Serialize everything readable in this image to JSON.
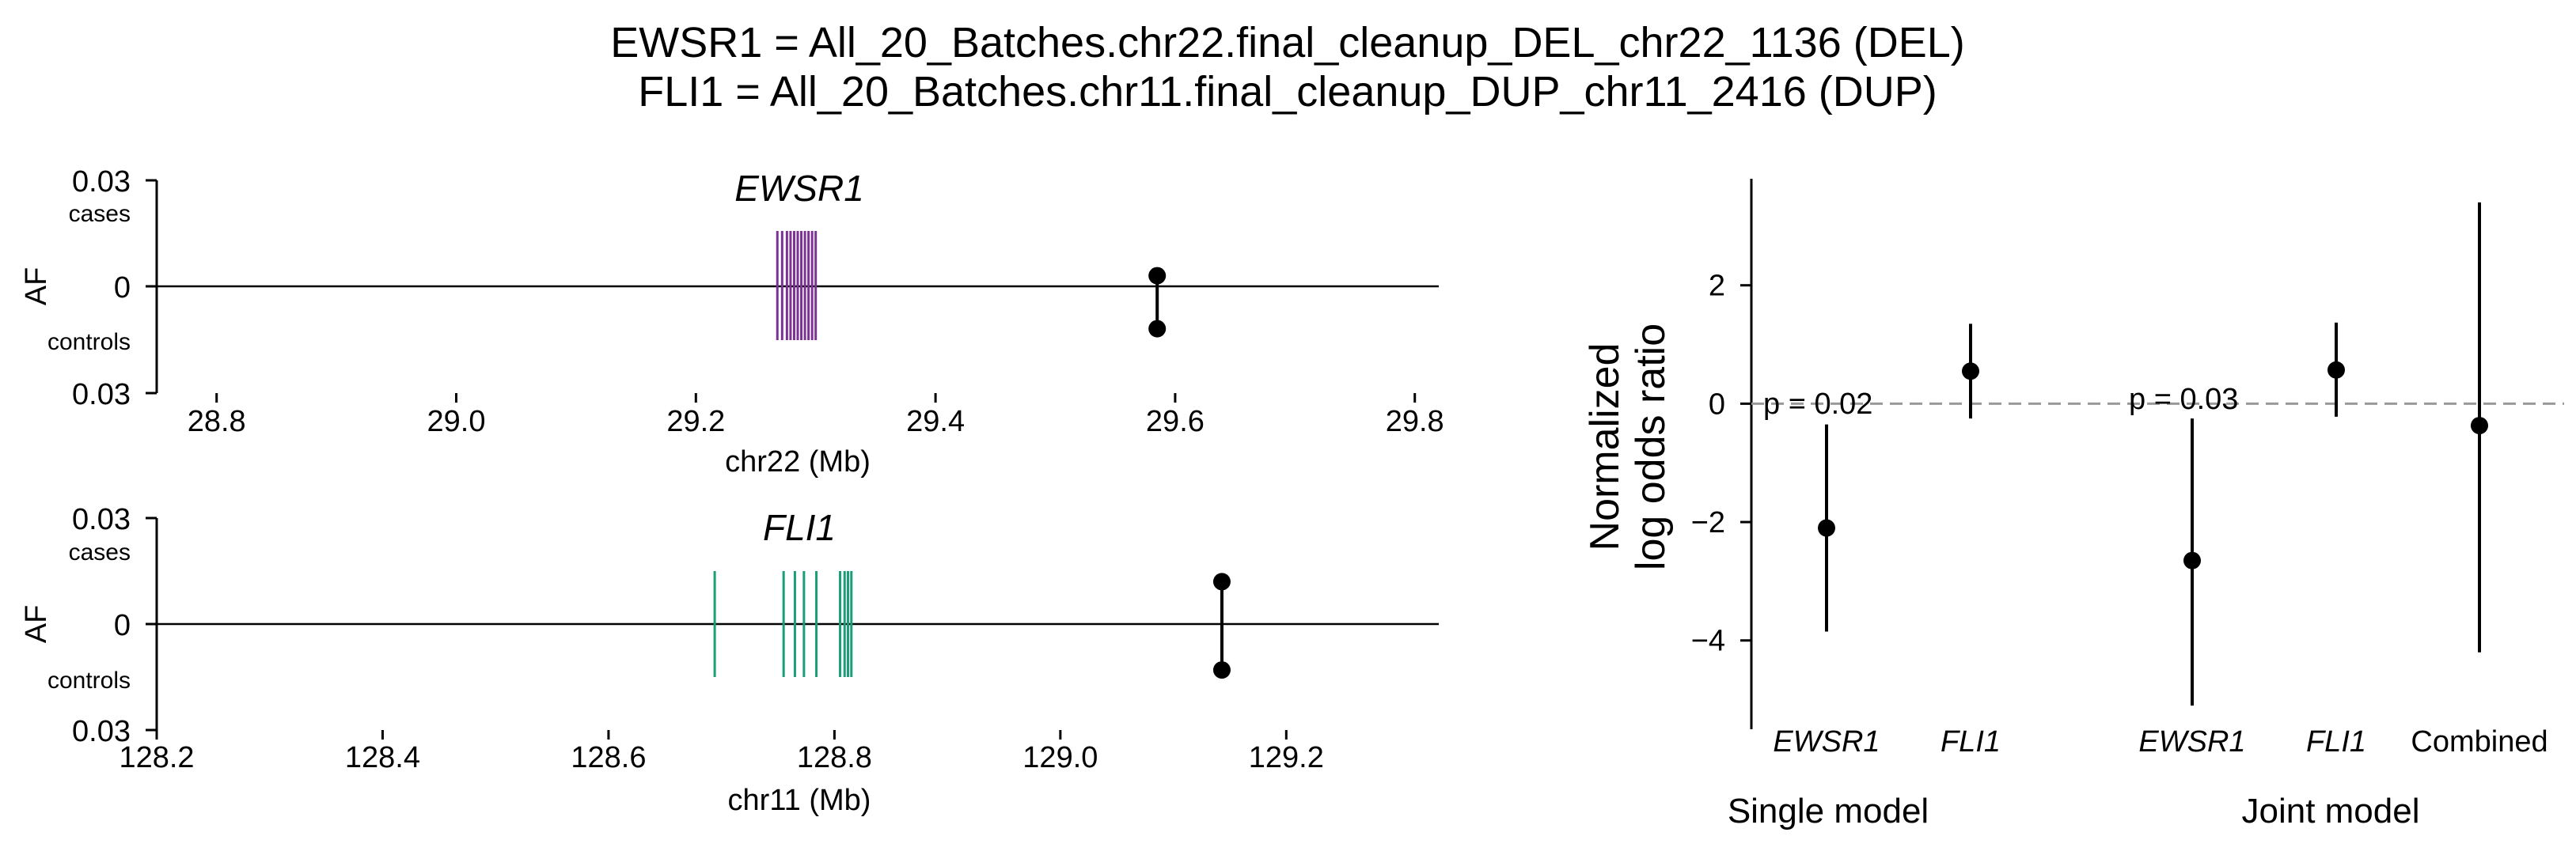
{
  "title_lines": [
    "EWSR1 = All_20_Batches.chr22.final_cleanup_DEL_chr22_1136 (DEL)",
    "FLI1 = All_20_Batches.chr11.final_cleanup_DUP_chr11_2416 (DUP)"
  ],
  "colors": {
    "ewsr1": "#7b3294",
    "fli1": "#1a9e77",
    "point": "#000000",
    "reference": "#999999"
  },
  "chart_data": [
    {
      "type": "scatter",
      "gene_label": "EWSR1",
      "xlabel": "chr22 (Mb)",
      "ylabel": "AF",
      "y_upper_label": "cases",
      "y_lower_label": "controls",
      "y_tick_labels": [
        "0.03",
        "0",
        "0.03"
      ],
      "ylim": [
        -0.03,
        0.03
      ],
      "xlim": [
        28.75,
        29.82
      ],
      "x_ticks": [
        28.8,
        29.0,
        29.2,
        29.4,
        29.6,
        29.8
      ],
      "x_tick_labels": [
        "28.8",
        "29.0",
        "29.2",
        "29.4",
        "29.6",
        "29.8"
      ],
      "gene_color": "ewsr1",
      "exons": [
        29.268,
        29.272,
        29.276,
        29.279,
        29.282,
        29.285,
        29.288,
        29.291,
        29.294,
        29.297,
        29.3
      ],
      "variant": {
        "position": 29.585,
        "af_cases": 0.003,
        "af_controls": 0.012
      }
    },
    {
      "type": "scatter",
      "gene_label": "FLI1",
      "xlabel": "chr11 (Mb)",
      "ylabel": "AF",
      "y_upper_label": "cases",
      "y_lower_label": "controls",
      "y_tick_labels": [
        "0.03",
        "0",
        "0.03"
      ],
      "ylim": [
        -0.03,
        0.03
      ],
      "xlim": [
        128.2,
        129.335
      ],
      "x_ticks": [
        128.2,
        128.4,
        128.6,
        128.8,
        129.0,
        129.2
      ],
      "x_tick_labels": [
        "128.2",
        "128.4",
        "128.6",
        "128.8",
        "129.0",
        "129.2"
      ],
      "gene_color": "fli1",
      "exons": [
        128.694,
        128.755,
        128.765,
        128.773,
        128.784,
        128.805,
        128.809,
        128.812,
        128.815
      ],
      "variant": {
        "position": 129.143,
        "af_cases": 0.012,
        "af_controls": 0.013
      }
    },
    {
      "type": "scatter",
      "ylabel_lines": [
        "Normalized",
        "log odds ratio"
      ],
      "ylim": [
        -5.5,
        3.8
      ],
      "y_ticks": [
        2,
        0,
        -2,
        -4
      ],
      "y_tick_labels": [
        "2",
        "0",
        "−2",
        "−4"
      ],
      "reference_line": 0,
      "categories": [
        "EWSR1",
        "FLI1",
        "EWSR1",
        "FLI1",
        "Combined"
      ],
      "category_italic": [
        true,
        true,
        true,
        true,
        false
      ],
      "points": [
        {
          "value": -2.1,
          "low": -3.85,
          "high": -0.35
        },
        {
          "value": 0.55,
          "low": -0.25,
          "high": 1.35
        },
        {
          "value": -2.65,
          "low": -5.1,
          "high": -0.25
        },
        {
          "value": 0.57,
          "low": -0.22,
          "high": 1.37
        },
        {
          "value": -0.37,
          "low": -4.2,
          "high": 3.4
        }
      ],
      "annotations": [
        "p = 0.02",
        "p = 0.03"
      ],
      "groups": [
        "Single model",
        "Joint model"
      ]
    }
  ]
}
